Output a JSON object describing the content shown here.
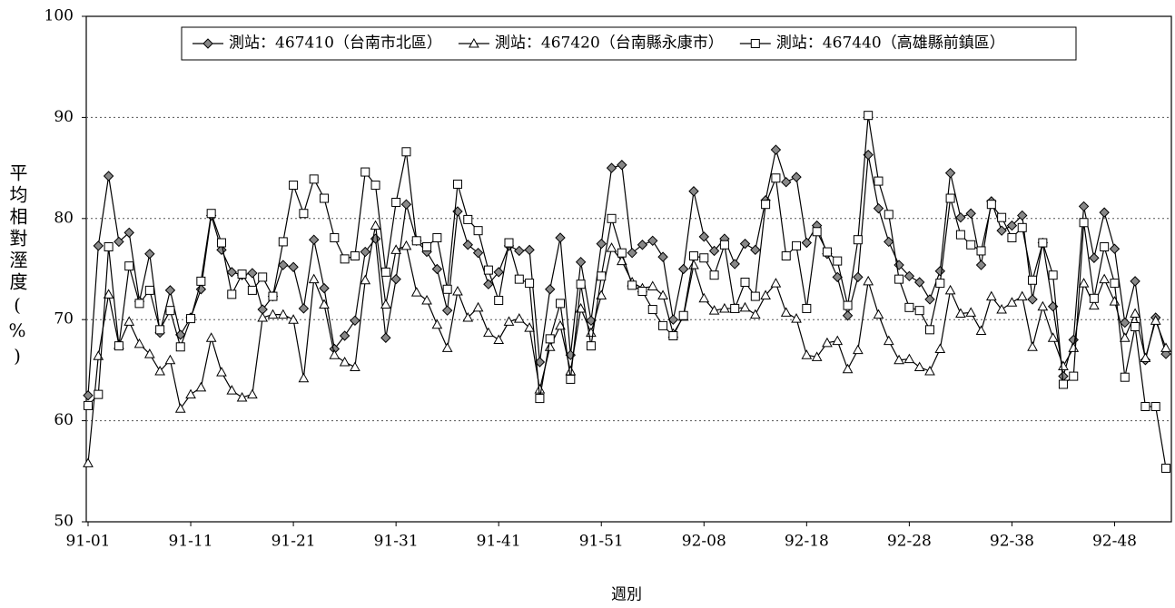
{
  "chart_data": {
    "type": "line",
    "y_label": "平均相對溼度(%)",
    "x_label": "週別",
    "legend": "top",
    "grid": true,
    "ylim": [
      50,
      100
    ],
    "yticks": [
      50,
      60,
      70,
      80,
      90,
      100
    ],
    "categories": [
      "91-01",
      null,
      null,
      null,
      null,
      null,
      null,
      null,
      null,
      null,
      "91-11",
      null,
      null,
      null,
      null,
      null,
      null,
      null,
      null,
      null,
      "91-21",
      null,
      null,
      null,
      null,
      null,
      null,
      null,
      null,
      null,
      "91-31",
      null,
      null,
      null,
      null,
      null,
      null,
      null,
      null,
      null,
      "91-41",
      null,
      null,
      null,
      null,
      null,
      null,
      null,
      null,
      null,
      "91-51",
      null,
      null,
      null,
      null,
      null,
      null,
      null,
      null,
      null,
      "92-08",
      null,
      null,
      null,
      null,
      null,
      null,
      null,
      null,
      null,
      "92-18",
      null,
      null,
      null,
      null,
      null,
      null,
      null,
      null,
      null,
      "92-28",
      null,
      null,
      null,
      null,
      null,
      null,
      null,
      null,
      null,
      "92-38",
      null,
      null,
      null,
      null,
      null,
      null,
      null,
      null,
      null,
      "92-48",
      null,
      null,
      null,
      null,
      null
    ],
    "series": [
      {
        "name": "測站：467410（台南市北區）",
        "color": "#000000",
        "marker": "diamond",
        "values": [
          62.5,
          77.3,
          84.2,
          77.7,
          78.6,
          71.8,
          76.5,
          68.7,
          72.9,
          68.5,
          70.2,
          73,
          80.3,
          76.9,
          74.7,
          74.4,
          74.6,
          71,
          72.3,
          75.4,
          75.2,
          71.1,
          77.9,
          73.1,
          67.1,
          68.4,
          69.9,
          76.7,
          78,
          68.2,
          74,
          81.4,
          77.8,
          76.7,
          75,
          70.9,
          80.7,
          77.4,
          76.6,
          73.5,
          74.7,
          77.3,
          76.8,
          76.9,
          65.8,
          73,
          78.1,
          66.5,
          75.7,
          69.9,
          77.5,
          85,
          85.3,
          76.6,
          77.4,
          77.8,
          76.2,
          70,
          75,
          82.7,
          78.2,
          76.8,
          78,
          75.5,
          77.5,
          76.9,
          81.8,
          86.8,
          83.6,
          84.1,
          77.6,
          79.3,
          76.5,
          74.2,
          70.4,
          74.2,
          86.3,
          81,
          77.7,
          75.4,
          74.3,
          73.7,
          72,
          74.8,
          84.5,
          80.1,
          80.5,
          75.4,
          81.7,
          78.8,
          79.3,
          80.3,
          72,
          77.6,
          71.3,
          64.4,
          68,
          81.2,
          76.1,
          80.6,
          77,
          69.7,
          73.8,
          66,
          70.2,
          66.6
        ]
      },
      {
        "name": "測站：467420（台南縣永康市）",
        "color": "#000000",
        "marker": "triangle",
        "values": [
          55.8,
          66.4,
          72.5,
          67.5,
          69.8,
          67.6,
          66.6,
          64.9,
          66,
          61.2,
          62.6,
          63.3,
          68.2,
          64.8,
          63,
          62.3,
          62.6,
          70.2,
          70.5,
          70.5,
          70,
          64.2,
          74,
          71.5,
          66.5,
          65.8,
          65.3,
          73.9,
          79.3,
          71.5,
          76.9,
          77.3,
          72.7,
          71.9,
          69.5,
          67.2,
          72.8,
          70.2,
          71.2,
          68.7,
          68,
          69.8,
          70.1,
          69.2,
          63.1,
          67.3,
          69.4,
          64.9,
          71.1,
          68.7,
          72.4,
          77.1,
          75.8,
          73.7,
          73.1,
          73.3,
          72.4,
          68.6,
          70.3,
          75.4,
          72.1,
          70.9,
          71.1,
          71.1,
          71.2,
          70.5,
          72.4,
          73.6,
          70.7,
          70.1,
          66.5,
          66.3,
          67.7,
          67.9,
          65.1,
          67,
          73.8,
          70.5,
          67.9,
          66,
          66.1,
          65.3,
          64.9,
          67.1,
          72.9,
          70.6,
          70.7,
          68.9,
          72.3,
          71,
          71.7,
          72.3,
          67.3,
          71.3,
          68.2,
          65.4,
          67.2,
          73.6,
          71.4,
          74,
          71.8,
          68.2,
          70.6,
          66.2,
          69.9,
          67.2
        ]
      },
      {
        "name": "測站：467440（高雄縣前鎮區）",
        "color": "#000000",
        "marker": "square",
        "values": [
          61.5,
          62.6,
          77.2,
          67.4,
          75.3,
          71.6,
          72.9,
          69,
          70.9,
          67.3,
          70.1,
          73.8,
          80.5,
          77.6,
          72.5,
          74.5,
          72.9,
          74.2,
          72.3,
          77.7,
          83.3,
          80.5,
          83.9,
          82,
          78.1,
          76,
          76.3,
          84.6,
          83.3,
          74.7,
          81.6,
          86.6,
          77.8,
          77.2,
          78.1,
          73,
          83.4,
          79.9,
          78.8,
          74.9,
          71.9,
          77.6,
          74,
          73.6,
          62.2,
          68.1,
          71.6,
          64.1,
          73.5,
          67.4,
          74.3,
          80,
          76.6,
          73.4,
          72.8,
          71,
          69.4,
          68.4,
          70.4,
          76.3,
          76.1,
          74.4,
          77.4,
          71.1,
          73.7,
          72.3,
          81.4,
          84,
          76.3,
          77.3,
          71.1,
          78.7,
          76.7,
          75.8,
          71.4,
          77.9,
          90.2,
          83.7,
          80.4,
          74,
          71.2,
          70.9,
          69,
          73.6,
          82,
          78.4,
          77.4,
          76.8,
          81.4,
          80.1,
          78.1,
          79.1,
          73.9,
          77.6,
          74.4,
          63.6,
          64.4,
          79.6,
          72.1,
          77.2,
          73.6,
          64.3,
          69.3,
          61.4,
          61.4,
          55.3
        ]
      }
    ]
  }
}
